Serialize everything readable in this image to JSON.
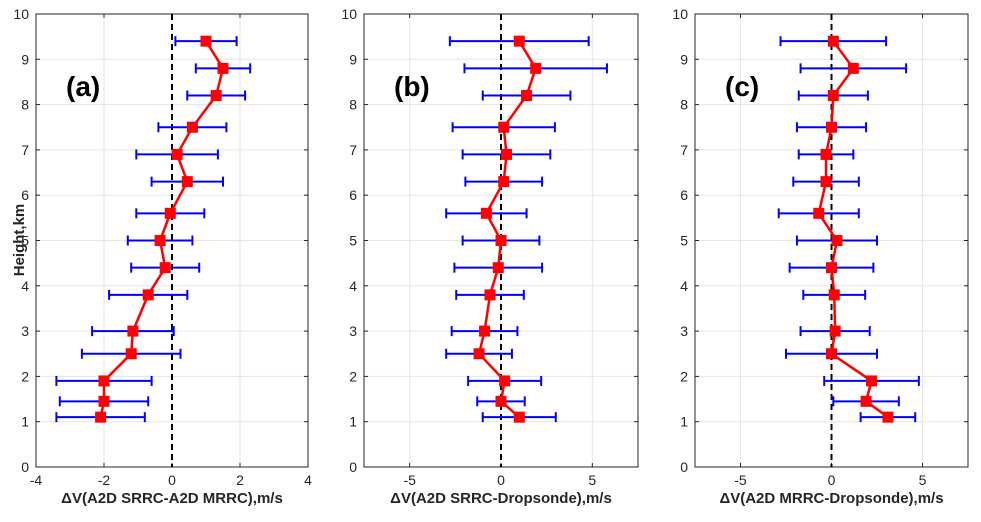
{
  "figure": {
    "ylabel": "Height,km",
    "colors": {
      "errorbar": "#0000ff",
      "line": "#ff0000",
      "marker": "#ff0000",
      "zero_line": "#000000",
      "grid": "#e6e6e6",
      "axis": "#262626"
    }
  },
  "chart_data": [
    {
      "type": "line",
      "panel_label": "(a)",
      "xlabel": "ΔV(A2D SRRC-A2D MRRC),m/s",
      "ylabel": "Height,km",
      "xlim": [
        -4,
        4
      ],
      "ylim": [
        0,
        10
      ],
      "xticks": [
        -4,
        -2,
        0,
        2,
        4
      ],
      "yticks": [
        0,
        1,
        2,
        3,
        4,
        5,
        6,
        7,
        8,
        9,
        10
      ],
      "grid": true,
      "zero_line": true,
      "series": [
        {
          "y": [
            1.1,
            1.45,
            1.9,
            2.5,
            3.0,
            3.8,
            4.4,
            5.0,
            5.6,
            6.3,
            6.9,
            7.5,
            8.2,
            8.8,
            9.4
          ],
          "x": [
            -2.1,
            -2.0,
            -2.0,
            -1.2,
            -1.15,
            -0.7,
            -0.2,
            -0.35,
            -0.05,
            0.45,
            0.15,
            0.6,
            1.3,
            1.5,
            1.0
          ],
          "err": [
            1.3,
            1.3,
            1.4,
            1.45,
            1.2,
            1.15,
            1.0,
            0.95,
            1.0,
            1.05,
            1.2,
            1.0,
            0.85,
            0.8,
            0.9
          ]
        }
      ]
    },
    {
      "type": "line",
      "panel_label": "(b)",
      "xlabel": "ΔV(A2D SRRC-Dropsonde),m/s",
      "ylabel": "",
      "xlim": [
        -7.5,
        7.5
      ],
      "ylim": [
        0,
        10
      ],
      "xticks": [
        -5,
        0,
        5
      ],
      "yticks": [
        0,
        1,
        2,
        3,
        4,
        5,
        6,
        7,
        8,
        9,
        10
      ],
      "grid": true,
      "zero_line": true,
      "series": [
        {
          "y": [
            1.1,
            1.45,
            1.9,
            2.5,
            3.0,
            3.8,
            4.4,
            5.0,
            5.6,
            6.3,
            6.9,
            7.5,
            8.2,
            8.8,
            9.4
          ],
          "x": [
            1.0,
            0.0,
            0.2,
            -1.2,
            -0.9,
            -0.6,
            -0.15,
            0.0,
            -0.8,
            0.15,
            0.3,
            0.15,
            1.4,
            1.9,
            1.0
          ],
          "err": [
            2.0,
            1.3,
            2.0,
            1.8,
            1.8,
            1.85,
            2.4,
            2.1,
            2.2,
            2.1,
            2.4,
            2.8,
            2.4,
            3.9,
            3.8
          ]
        }
      ]
    },
    {
      "type": "line",
      "panel_label": "(c)",
      "xlabel": "ΔV(A2D MRRC-Dropsonde),m/s",
      "ylabel": "",
      "xlim": [
        -7.5,
        7.5
      ],
      "ylim": [
        0,
        10
      ],
      "xticks": [
        -5,
        0,
        5
      ],
      "yticks": [
        0,
        1,
        2,
        3,
        4,
        5,
        6,
        7,
        8,
        9,
        10
      ],
      "grid": true,
      "zero_line": true,
      "series": [
        {
          "y": [
            1.1,
            1.45,
            1.9,
            2.5,
            3.0,
            3.8,
            4.4,
            5.0,
            5.6,
            6.3,
            6.9,
            7.5,
            8.2,
            8.8,
            9.4
          ],
          "x": [
            3.1,
            1.9,
            2.2,
            0.0,
            0.2,
            0.15,
            0.0,
            0.3,
            -0.7,
            -0.3,
            -0.3,
            0.0,
            0.1,
            1.2,
            0.1
          ],
          "err": [
            1.5,
            1.8,
            2.6,
            2.5,
            1.9,
            1.7,
            2.3,
            2.2,
            2.2,
            1.8,
            1.5,
            1.9,
            1.9,
            2.9,
            2.9
          ]
        }
      ]
    }
  ]
}
